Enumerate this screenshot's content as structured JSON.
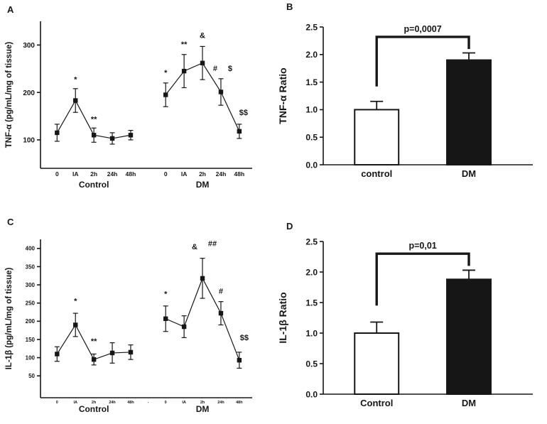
{
  "figure": {
    "bg": "#ffffff",
    "ink": "#161616"
  },
  "panels": [
    {
      "label": "A"
    },
    {
      "label": "B"
    },
    {
      "label": "C"
    },
    {
      "label": "D"
    }
  ],
  "chart_data": [
    {
      "panel": "A",
      "type": "line",
      "title": "",
      "ylabel": "TNF-α (pg/mL/mg of tissue)",
      "ylim": [
        40,
        350
      ],
      "yticks": [
        "100",
        "200",
        "300"
      ],
      "grid": false,
      "categories": [
        "0",
        "IA",
        "2h",
        "24h",
        "48h",
        "0",
        "IA",
        "2h",
        "24h",
        "48h"
      ],
      "groups": [
        {
          "label": "Control",
          "from": 0,
          "to": 4
        },
        {
          "label": "DM",
          "from": 5,
          "to": 9
        }
      ],
      "series": [
        {
          "name": "Control",
          "values": [
            115,
            183,
            110,
            103,
            110
          ],
          "errors": [
            18,
            25,
            15,
            12,
            10
          ]
        },
        {
          "name": "DM",
          "values": [
            195,
            245,
            262,
            201,
            118
          ],
          "errors": [
            25,
            35,
            35,
            28,
            15
          ]
        }
      ],
      "annotations": [
        {
          "slot": 1,
          "value": 222,
          "text": "*"
        },
        {
          "slot": 2,
          "value": 138,
          "text": "**"
        },
        {
          "slot": 5,
          "value": 236,
          "text": "*"
        },
        {
          "slot": 6,
          "value": 296,
          "text": "**"
        },
        {
          "slot": 7,
          "value": 315,
          "text": "&"
        },
        {
          "slot": 8,
          "value": 245,
          "text": "#",
          "dx": -8
        },
        {
          "slot": 8,
          "value": 245,
          "text": "$",
          "dx": 13
        },
        {
          "slot": 9,
          "value": 152,
          "text": "$$",
          "dx": 6
        }
      ]
    },
    {
      "panel": "B",
      "type": "bar",
      "title": "",
      "ylabel": "TNF-α Ratio",
      "ylim": [
        0,
        2.5
      ],
      "yticks": [
        "0.0",
        "0.5",
        "1.0",
        "1.5",
        "2.0",
        "2.5"
      ],
      "grid": false,
      "categories": [
        "control",
        "DM"
      ],
      "values": [
        1.0,
        1.9
      ],
      "errors": [
        0.15,
        0.13
      ],
      "bar_colors": [
        "#ffffff",
        "#161616"
      ],
      "bracket": {
        "label": "p=0,0007",
        "left_bottom": 1.42,
        "top": 2.32,
        "right_bottom": 2.1
      }
    },
    {
      "panel": "C",
      "type": "line",
      "title": "",
      "ylabel": "IL-1β (pg/mL/mg of tissue)",
      "ylim": [
        -10,
        425
      ],
      "yticks": [
        "50",
        "100",
        "150",
        "200",
        "250",
        "300",
        "350",
        "400"
      ],
      "grid": false,
      "categories": [
        "0",
        "IA",
        "2h",
        "24h",
        "48h",
        "0",
        "IA",
        "2h",
        "24h",
        "48h"
      ],
      "gap_label": "-",
      "groups": [
        {
          "label": "Control",
          "from": 0,
          "to": 4
        },
        {
          "label": "DM",
          "from": 5,
          "to": 9
        }
      ],
      "series": [
        {
          "name": "Control",
          "values": [
            110,
            190,
            95,
            113,
            115
          ],
          "errors": [
            20,
            32,
            15,
            28,
            20
          ]
        },
        {
          "name": "DM",
          "values": [
            207,
            185,
            318,
            222,
            93
          ],
          "errors": [
            35,
            30,
            55,
            32,
            22
          ]
        }
      ],
      "annotations": [
        {
          "slot": 1,
          "value": 248,
          "text": "*"
        },
        {
          "slot": 2,
          "value": 138,
          "text": "**"
        },
        {
          "slot": 5,
          "value": 268,
          "text": "*"
        },
        {
          "slot": 7,
          "value": 398,
          "text": "&",
          "dx": -11
        },
        {
          "slot": 7,
          "value": 406,
          "text": "##",
          "dx": 14
        },
        {
          "slot": 8,
          "value": 276,
          "text": "#"
        },
        {
          "slot": 9,
          "value": 148,
          "text": "$$",
          "dx": 7
        }
      ]
    },
    {
      "panel": "D",
      "type": "bar",
      "title": "",
      "ylabel": "IL-1β Ratio",
      "ylim": [
        0,
        2.5
      ],
      "yticks": [
        "0.0",
        "0.5",
        "1.0",
        "1.5",
        "2.0",
        "2.5"
      ],
      "grid": false,
      "categories": [
        "Control",
        "DM"
      ],
      "values": [
        1.0,
        1.88
      ],
      "errors": [
        0.18,
        0.15
      ],
      "bar_colors": [
        "#ffffff",
        "#161616"
      ],
      "bracket": {
        "label": "p=0,01",
        "left_bottom": 1.45,
        "top": 2.3,
        "right_bottom": 2.1
      }
    }
  ]
}
